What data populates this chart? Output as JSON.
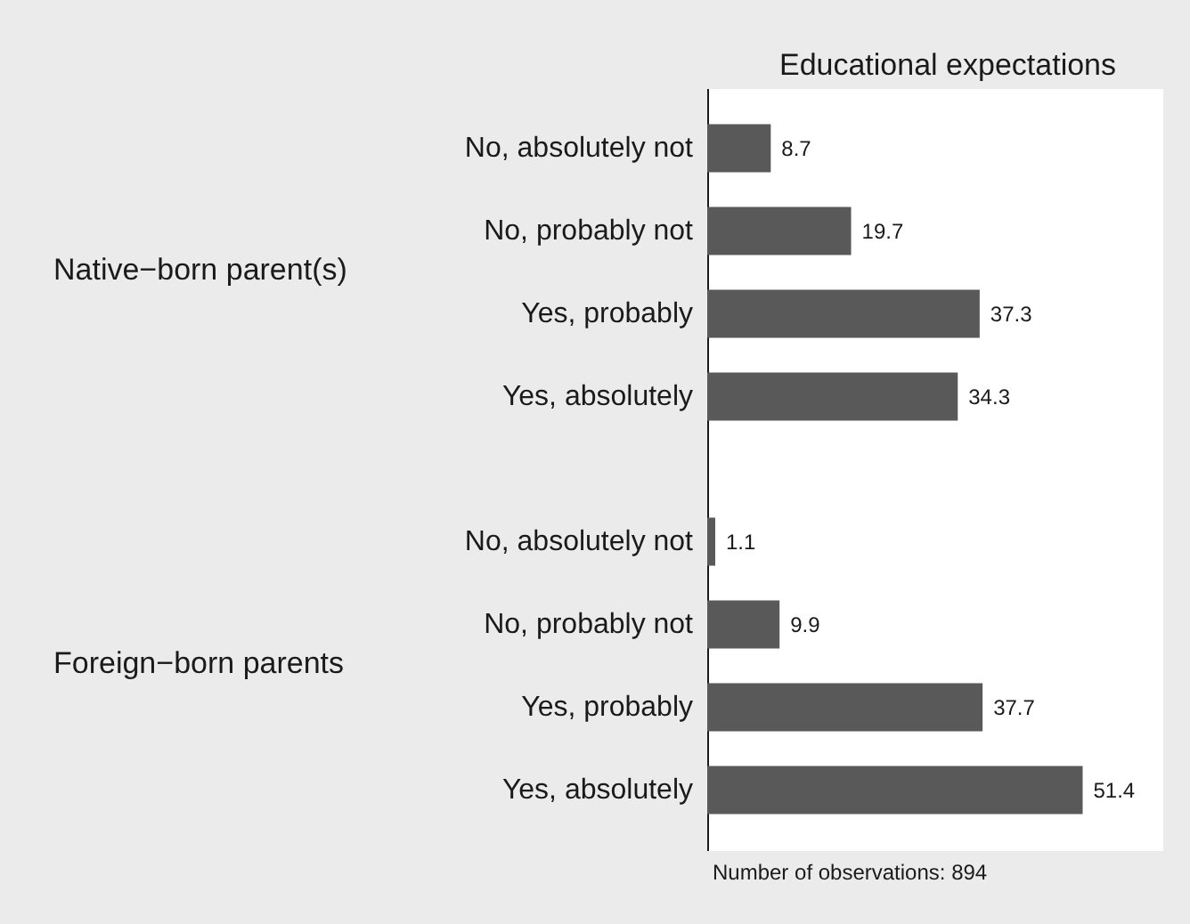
{
  "chart_data": [
    {
      "type": "bar",
      "orientation": "horizontal",
      "title": "Educational expectations",
      "ylabel": "Native−born parent(s)",
      "categories": [
        "No, absolutely not",
        "No, probably not",
        "Yes, probably",
        "Yes, absolutely"
      ],
      "values": [
        8.7,
        19.7,
        37.3,
        34.3
      ],
      "color": "#595959",
      "data_labels": true
    },
    {
      "type": "bar",
      "orientation": "horizontal",
      "ylabel": "Foreign−born parents",
      "categories": [
        "No, absolutely not",
        "No, probably not",
        "Yes, probably",
        "Yes, absolutely"
      ],
      "values": [
        1.1,
        9.9,
        37.7,
        51.4
      ],
      "color": "#595959",
      "data_labels": true,
      "annotations": [
        "Number of observations: 894"
      ]
    }
  ]
}
